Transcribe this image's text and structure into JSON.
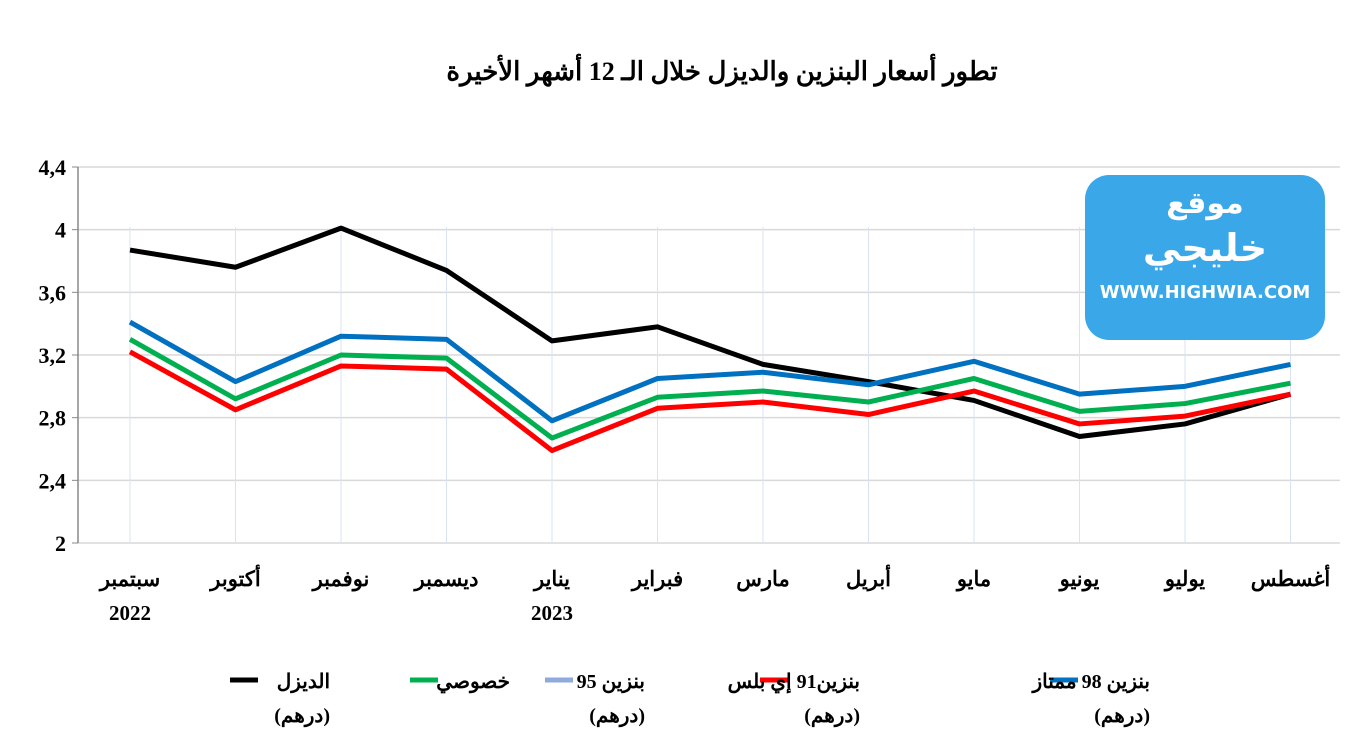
{
  "chart_data": {
    "type": "line",
    "title": "تطور أسعار البنزين والديزل خلال الـ 12 أشهر الأخيرة",
    "categories": [
      [
        "سبتمبر",
        "2022"
      ],
      [
        "أكتوبر",
        ""
      ],
      [
        "نوفمبر",
        ""
      ],
      [
        "ديسمبر",
        ""
      ],
      [
        "يناير",
        "2023"
      ],
      [
        "فبراير",
        ""
      ],
      [
        "مارس",
        ""
      ],
      [
        "أبريل",
        ""
      ],
      [
        "مايو",
        ""
      ],
      [
        "يونيو",
        ""
      ],
      [
        "يوليو",
        ""
      ],
      [
        "أغسطس",
        ""
      ]
    ],
    "ylim": [
      2,
      4.4
    ],
    "yticks": [
      "2",
      "2,4",
      "2,8",
      "3,2",
      "3,6",
      "4",
      "4,4"
    ],
    "grid": true,
    "legend_position": "bottom",
    "series": [
      {
        "name": "الديزل",
        "unit": "(درهم)",
        "color": "#000000",
        "values": [
          3.87,
          3.76,
          4.01,
          3.74,
          3.29,
          3.38,
          3.14,
          3.03,
          2.91,
          2.68,
          2.76,
          2.95
        ]
      },
      {
        "name": "خصوصي",
        "unit": "",
        "color": "#00b050",
        "values": [
          3.3,
          2.92,
          3.2,
          3.18,
          2.67,
          2.93,
          2.97,
          2.9,
          3.05,
          2.84,
          2.89,
          3.02
        ]
      },
      {
        "name": "بنزين 95",
        "unit": "(درهم)",
        "color": "#8faadc",
        "values": null
      },
      {
        "name": "بنزين91 إي بلس",
        "unit": "(درهم)",
        "color": "#ff0000",
        "values": [
          3.22,
          2.85,
          3.13,
          3.11,
          2.59,
          2.86,
          2.9,
          2.82,
          2.97,
          2.76,
          2.81,
          2.95
        ]
      },
      {
        "name": "بنزين 98 ممتاز",
        "unit": "(درهم)",
        "color": "#0070c0",
        "values": [
          3.41,
          3.03,
          3.32,
          3.3,
          2.78,
          3.05,
          3.09,
          3.01,
          3.16,
          2.95,
          3.0,
          3.14
        ]
      }
    ]
  },
  "watermark": {
    "line1": "موقع",
    "line2": "خليجي",
    "url": "WWW.HIGHWIA.COM"
  }
}
